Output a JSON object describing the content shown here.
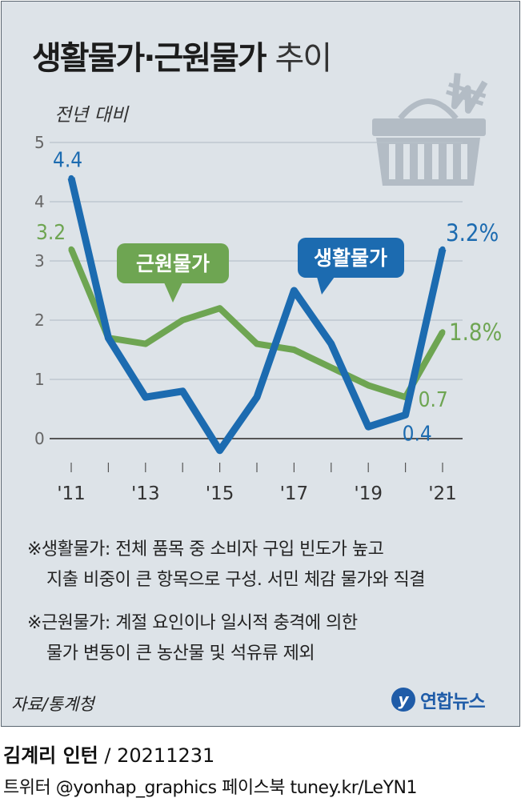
{
  "title": {
    "main": "생활물가·근원물가",
    "sub": "추이"
  },
  "unit_label": "전년 대비",
  "chart_data": {
    "type": "line",
    "x": [
      2011,
      2012,
      2013,
      2014,
      2015,
      2016,
      2017,
      2018,
      2019,
      2020,
      2021
    ],
    "xticks": [
      "'11",
      "'13",
      "'15",
      "'17",
      "'19",
      "'21"
    ],
    "yticks": [
      "0",
      "1",
      "2",
      "3",
      "4",
      "5"
    ],
    "ylim": [
      -0.5,
      5
    ],
    "series": [
      {
        "name": "근원물가",
        "color": "#6ea552",
        "values": [
          3.2,
          1.7,
          1.6,
          2.0,
          2.2,
          1.6,
          1.5,
          1.2,
          0.9,
          0.7,
          1.8
        ]
      },
      {
        "name": "생활물가",
        "color": "#1c6bb0",
        "values": [
          4.4,
          1.7,
          0.7,
          0.8,
          -0.2,
          0.7,
          2.5,
          1.6,
          0.2,
          0.4,
          3.2
        ]
      }
    ],
    "data_labels": {
      "core_first": "3.2",
      "living_first": "4.4",
      "core_2020": "0.7",
      "living_2020": "0.4",
      "core_last": "1.8%",
      "living_last": "3.2%"
    },
    "callouts": {
      "core": "근원물가",
      "living": "생활물가"
    }
  },
  "notes": [
    "※생활물가: 전체 품목 중 소비자 구입 빈도가 높고",
    "지출 비중이 큰 항목으로 구성. 서민 체감 물가와 직결",
    "※근원물가: 계절 요인이나 일시적 충격에 의한",
    "물가 변동이 큰 농산물 및 석유류 제외"
  ],
  "source": "자료/통계청",
  "logo_text": "연합뉴스",
  "credit": {
    "name": "김계리 인턴",
    "date": "/ 20211231"
  },
  "social": "트위터 @yonhap_graphics  페이스북 tuney.kr/LeYN1",
  "icons": [
    "shopping-basket-icon",
    "won-sign-icon",
    "yonhap-logo-icon"
  ],
  "colors": {
    "core": "#6ea552",
    "living": "#1c6bb0",
    "background": "#dde3e8"
  }
}
